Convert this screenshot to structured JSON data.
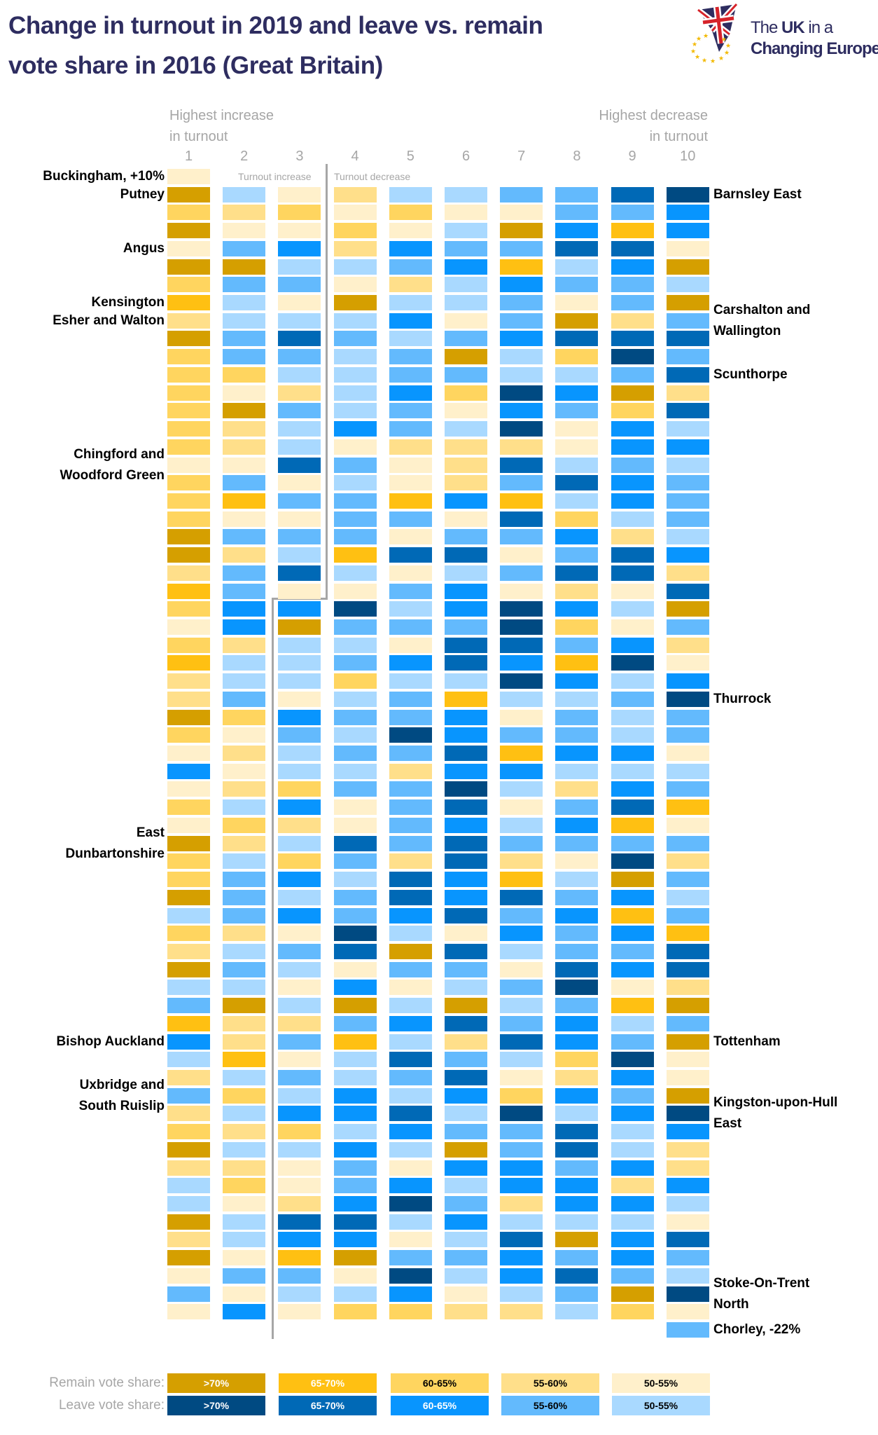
{
  "title": [
    "Change in turnout in 2019 and leave vs. remain",
    "vote share in 2016 (Great Britain)"
  ],
  "logo": {
    "line1_a": "The ",
    "line1_b": "UK",
    "line1_c": " in a",
    "line2": "Changing Europe"
  },
  "header": {
    "left": [
      "Highest increase",
      "in turnout"
    ],
    "right": [
      "Highest decrease",
      "in turnout"
    ],
    "increase_note": "Turnout increase",
    "decrease_note": "Turnout decrease"
  },
  "chart_data": {
    "type": "heatmap",
    "title": "Change in turnout in 2019 and leave vs. remain vote share in 2016 (Great Britain)",
    "columns": [
      "1",
      "2",
      "3",
      "4",
      "5",
      "6",
      "7",
      "8",
      "9",
      "10"
    ],
    "column_meaning_left": "Highest increase in turnout",
    "column_meaning_right": "Highest decrease in turnout",
    "categories": {
      "A": {
        "group": "Remain",
        "label": ">70%",
        "color": "#D59F00"
      },
      "B": {
        "group": "Remain",
        "label": "65-70%",
        "color": "#FFC012"
      },
      "C": {
        "group": "Remain",
        "label": "60-65%",
        "color": "#FFD55F"
      },
      "D": {
        "group": "Remain",
        "label": "55-60%",
        "color": "#FFDF8A"
      },
      "E": {
        "group": "Remain",
        "label": "50-55%",
        "color": "#FFF0CB"
      },
      "F": {
        "group": "Leave",
        "label": "50-55%",
        "color": "#A9D9FF"
      },
      "G": {
        "group": "Leave",
        "label": "55-60%",
        "color": "#63BAFD"
      },
      "H": {
        "group": "Leave",
        "label": "60-65%",
        "color": "#0895FE"
      },
      "I": {
        "group": "Leave",
        "label": "65-70%",
        "color": "#0069B6"
      },
      "J": {
        "group": "Leave",
        "label": ">70%",
        "color": "#004A82"
      }
    },
    "rows": [
      "E---------",
      "AFEDFFGGIJ",
      "CDCECEEGGH",
      "AEECEFAHBH",
      "EGHDHGGIIE",
      "AAFFGHBFHA",
      "CGGEDFHGGF",
      "BFEAFFGEGA",
      "DFFFHEGADG",
      "AGIGFGHIII",
      "CGGFGAFCJG",
      "CCFFGGFFGI",
      "CEDFHCJHAD",
      "CAGFGEHGCI",
      "CDFHGFJEHF",
      "CDFEDDDEHH",
      "EEIGEDIFGF",
      "CGEFEDGIHG",
      "CBGGBHBFHG",
      "CEEGGEICFG",
      "AGGGEGGHDF",
      "ADFBIIEGIH",
      "DGIFEFGIID",
      "BGEEGHEDEI",
      "CHHJFHJHFA",
      "EHAGGGJCEG",
      "CDFFEIIGHD",
      "BFFGHIHBJE",
      "DFFCFFJHFH",
      "DGEFGBFFGJ",
      "ACHGGHEGFG",
      "CEGFJHGGFG",
      "EDFGGIBHHE",
      "HEFFDHHFFF",
      "EDCGGJFDHG",
      "CFHEGIEGIB",
      "ECDEGHFHBE",
      "ADFIGIGGGG",
      "CFCGDIDEJD",
      "CGHFIHBFAG",
      "AGFGIHIGHF",
      "FGHGHIGHBG",
      "CDEJFEHGHB",
      "DFGIAIFGGI",
      "AGFEGGEIHI",
      "FFEHEFGJED",
      "GAFAFAFGBA",
      "BDDGHIGHFG",
      "HDGBFDIHGA",
      "FBEFIGFCJE",
      "DFGFGIEDHE",
      "GCFHFHCHGA",
      "DFHHIFJFHJ",
      "CDCFHGGIFH",
      "AFFHFAGIFD",
      "DDEGEHHGHD",
      "FCEGHFHHDH",
      "FEDHJGDHHF",
      "AFIIFHFFFE",
      "DFHHEFIAHI",
      "AEBAGGHGHG",
      "EGGEJFHIGF",
      "GEFFHEFGAJ",
      "EHECCDDFCE",
      "---------G"
    ],
    "annotations": [
      {
        "row": 0,
        "side": "left",
        "lines": [
          "Buckingham, +10%"
        ]
      },
      {
        "row": 1,
        "side": "left",
        "lines": [
          "Putney"
        ]
      },
      {
        "row": 4,
        "side": "left",
        "lines": [
          "Angus"
        ]
      },
      {
        "row": 7,
        "side": "left",
        "lines": [
          "Kensington"
        ]
      },
      {
        "row": 8,
        "side": "left",
        "lines": [
          "Esher and Walton"
        ]
      },
      {
        "row": 16,
        "side": "left",
        "lines": [
          "Chingford and",
          "Woodford Green"
        ]
      },
      {
        "row": 37,
        "side": "left",
        "lines": [
          "East",
          "Dunbartonshire"
        ]
      },
      {
        "row": 48,
        "side": "left",
        "lines": [
          "Bishop Auckland"
        ]
      },
      {
        "row": 51,
        "side": "left",
        "lines": [
          "Uxbridge and",
          "South Ruislip"
        ]
      },
      {
        "row": 1,
        "side": "right",
        "lines": [
          "Barnsley East"
        ]
      },
      {
        "row": 8,
        "side": "right",
        "lines": [
          "Carshalton and",
          "Wallington"
        ]
      },
      {
        "row": 11,
        "side": "right",
        "lines": [
          "Scunthorpe"
        ]
      },
      {
        "row": 29,
        "side": "right",
        "lines": [
          "Thurrock"
        ]
      },
      {
        "row": 48,
        "side": "right",
        "lines": [
          "Tottenham"
        ]
      },
      {
        "row": 52,
        "side": "right",
        "lines": [
          "Kingston-upon-Hull",
          "East"
        ]
      },
      {
        "row": 62,
        "side": "right",
        "lines": [
          "Stoke-On-Trent",
          "North"
        ]
      },
      {
        "row": 64,
        "side": "right",
        "lines": [
          "Chorley, -22%"
        ]
      }
    ],
    "legend": {
      "remain_label": "Remain vote share:",
      "leave_label": "Leave vote share:",
      "remain": [
        {
          "label": ">70%",
          "color": "#D59F00",
          "text_color": "#FFFFFF"
        },
        {
          "label": "65-70%",
          "color": "#FFC012",
          "text_color": "#FFFFFF"
        },
        {
          "label": "60-65%",
          "color": "#FFD55F",
          "text_color": "#000000"
        },
        {
          "label": "55-60%",
          "color": "#FFDF8A",
          "text_color": "#000000"
        },
        {
          "label": "50-55%",
          "color": "#FFF0CB",
          "text_color": "#000000"
        }
      ],
      "leave": [
        {
          "label": ">70%",
          "color": "#004A82",
          "text_color": "#FFFFFF"
        },
        {
          "label": "65-70%",
          "color": "#0069B6",
          "text_color": "#FFFFFF"
        },
        {
          "label": "60-65%",
          "color": "#0895FE",
          "text_color": "#FFFFFF"
        },
        {
          "label": "55-60%",
          "color": "#63BAFD",
          "text_color": "#000000"
        },
        {
          "label": "50-55%",
          "color": "#A9D9FF",
          "text_color": "#000000"
        }
      ]
    }
  }
}
